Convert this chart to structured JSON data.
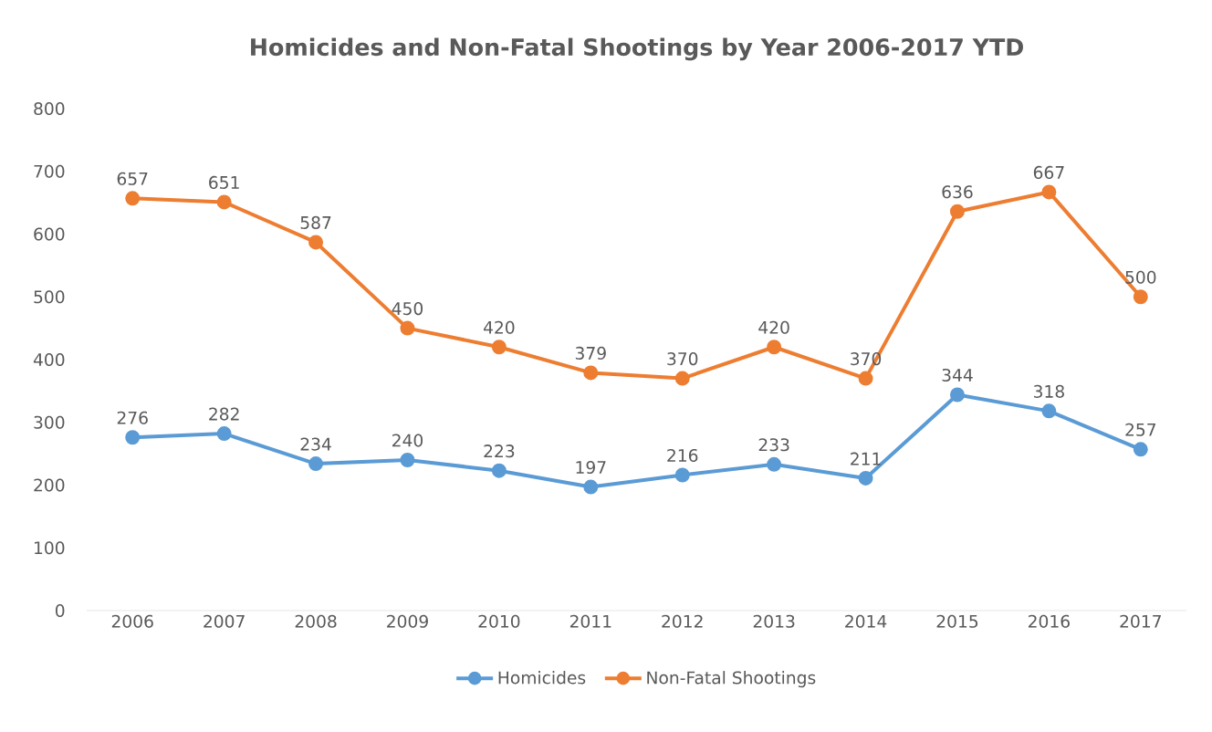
{
  "chart_data": {
    "type": "line",
    "title": "Homicides and Non-Fatal Shootings by Year 2006-2017 YTD",
    "categories": [
      "2006",
      "2007",
      "2008",
      "2009",
      "2010",
      "2011",
      "2012",
      "2013",
      "2014",
      "2015",
      "2016",
      "2017"
    ],
    "series": [
      {
        "name": "Homicides",
        "color": "#5b9bd5",
        "values": [
          276,
          282,
          234,
          240,
          223,
          197,
          216,
          233,
          211,
          344,
          318,
          257
        ]
      },
      {
        "name": "Non-Fatal Shootings",
        "color": "#ed7d31",
        "values": [
          657,
          651,
          587,
          450,
          420,
          379,
          370,
          420,
          370,
          636,
          667,
          500
        ]
      }
    ],
    "ylim": [
      0,
      800
    ],
    "yticks": [
      0,
      100,
      200,
      300,
      400,
      500,
      600,
      700,
      800
    ],
    "data_labels": true,
    "legend": "bottom",
    "marker": "circle"
  }
}
